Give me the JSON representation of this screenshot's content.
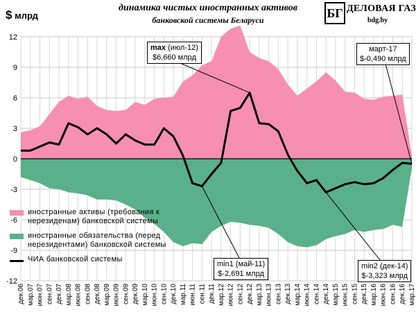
{
  "title": "динамика чистых иностранных активов",
  "subtitle": "банковской системы Беларуси",
  "unit": {
    "symbol": "$",
    "label": "млрд"
  },
  "logo": {
    "mark": "БГ",
    "name": "ДЕЛОВАЯ ГАЗЕТА",
    "site": "bdg.by"
  },
  "callouts": {
    "max": {
      "label": "max",
      "period": "(июл-12)",
      "value": "$6,660 млрд"
    },
    "last": {
      "period": "март-17",
      "value": "$-0,490 млрд"
    },
    "min1": {
      "label": "min1",
      "period": "(май-11)",
      "value": "$-2,691 млрд"
    },
    "min2": {
      "label": "min2",
      "period": "(дек-14)",
      "value": "$-3,323 млрд"
    }
  },
  "legend": {
    "assets": "иностранные активы (требования к нерезиденам) банковской системы",
    "liabilities": "иностранные обязательства (перед нерезидентами) банковской системы",
    "net": "ЧИА банковской системы"
  },
  "colors": {
    "assets": "#f78fb3",
    "liabilities": "#5ab08a",
    "net": "#000000"
  },
  "chart_data": {
    "type": "area",
    "title": "динамика чистых иностранных активов",
    "ylabel": "$ млрд",
    "ylim": [
      -12,
      12
    ],
    "yticks": [
      -12,
      -9,
      -6,
      -3,
      0,
      3,
      6,
      9,
      12
    ],
    "grid": true,
    "x_start": "дек.06",
    "x_end": "мар.17",
    "tick_labels": [
      "дек.06",
      "мар.07",
      "июн.07",
      "сен.07",
      "дек.07",
      "мар.08",
      "июн.08",
      "сен.08",
      "дек.08",
      "мар.09",
      "июн.09",
      "сен.09",
      "дек.09",
      "мар.10",
      "июн.10",
      "сен.10",
      "дек.10",
      "мар.11",
      "июн.11",
      "сен.11",
      "дек.11",
      "мар.12",
      "июн.12",
      "сен.12",
      "дек.12",
      "мар.13",
      "июн.13",
      "сен.13",
      "дек.13",
      "мар.14",
      "июн.14",
      "сен.14",
      "дек.14",
      "мар.15",
      "июн.15",
      "сен.15",
      "дек.15",
      "мар.16",
      "июн.16",
      "сен.16",
      "дек.16",
      "мар.17"
    ],
    "series": [
      {
        "name": "иностранные активы (требования к нерезиденам) банковской системы",
        "values": [
          2.6,
          2.8,
          3.2,
          4.4,
          5.6,
          6.2,
          5.9,
          6.1,
          5.2,
          4.8,
          4.7,
          4.8,
          5.6,
          5.3,
          5.9,
          6.0,
          6.1,
          7.6,
          8.2,
          9.2,
          9.6,
          12.0,
          12.8,
          13.1,
          10.5,
          9.9,
          9.6,
          8.8,
          7.3,
          6.2,
          6.9,
          7.6,
          8.5,
          7.7,
          6.6,
          6.5,
          5.9,
          5.8,
          6.1,
          6.2,
          6.3,
          0.3
        ]
      },
      {
        "name": "иностранные обязательства (перед нерезидентами) банковской системы",
        "values": [
          -1.8,
          -2.1,
          -2.4,
          -2.9,
          -3.0,
          -3.3,
          -3.4,
          -3.6,
          -4.0,
          -4.0,
          -4.1,
          -4.5,
          -5.0,
          -5.8,
          -6.4,
          -7.2,
          -8.2,
          -8.6,
          -8.3,
          -8.4,
          -7.2,
          -6.6,
          -6.2,
          -6.3,
          -6.5,
          -6.6,
          -6.8,
          -7.4,
          -8.2,
          -8.6,
          -8.7,
          -8.5,
          -7.9,
          -7.6,
          -7.4,
          -7.0,
          -7.2,
          -7.0,
          -6.9,
          -6.5,
          -6.7,
          -0.9
        ]
      },
      {
        "name": "ЧИА банковской системы",
        "values": [
          0.8,
          0.8,
          1.2,
          1.6,
          1.4,
          3.5,
          3.1,
          2.4,
          3.0,
          2.4,
          1.5,
          2.4,
          1.8,
          1.4,
          1.4,
          3.0,
          2.2,
          0.3,
          -2.4,
          -2.7,
          -1.5,
          -0.4,
          4.7,
          5.0,
          6.5,
          3.5,
          3.4,
          2.7,
          0.4,
          -1.2,
          -2.4,
          -2.1,
          -3.3,
          -2.9,
          -2.5,
          -2.3,
          -2.5,
          -2.4,
          -1.9,
          -1.1,
          -0.4,
          -0.5
        ]
      }
    ]
  }
}
